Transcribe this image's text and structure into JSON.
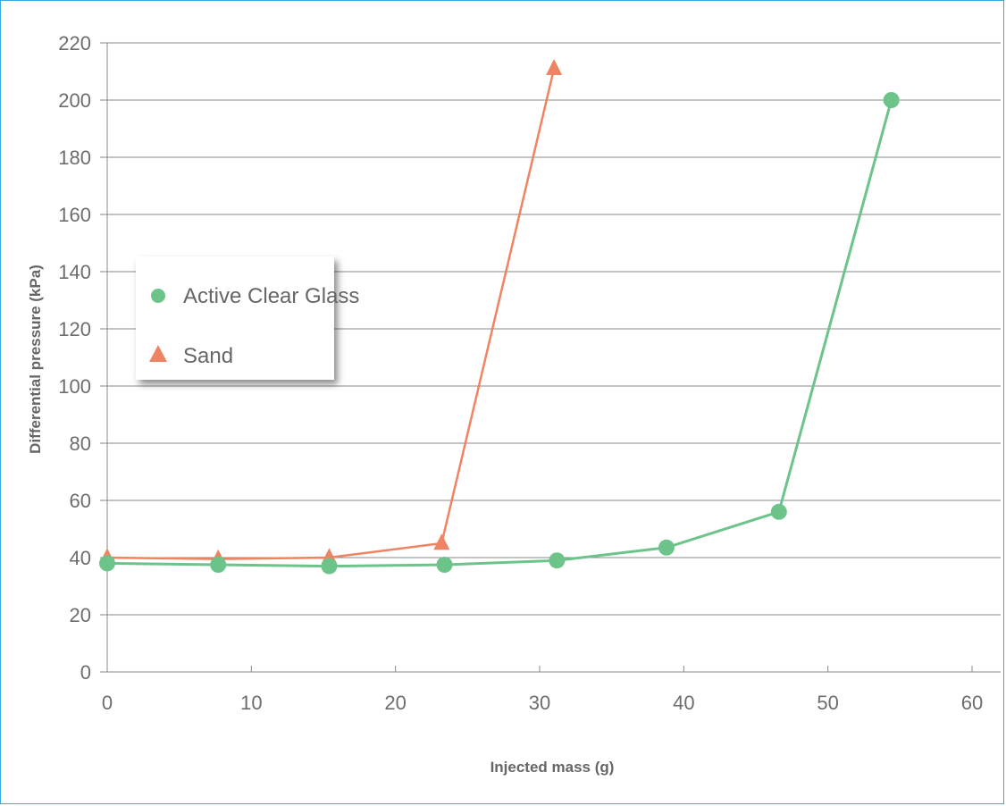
{
  "chart_data": {
    "type": "line",
    "title": "",
    "xlabel": "Injected mass (g)",
    "ylabel": "Differential pressure (kPa)",
    "xlim": [
      0,
      60
    ],
    "ylim": [
      0,
      220
    ],
    "xticks": [
      0,
      10,
      20,
      30,
      40,
      50,
      60
    ],
    "yticks": [
      0,
      20,
      40,
      60,
      80,
      100,
      120,
      140,
      160,
      180,
      200,
      220
    ],
    "grid": "horizontal",
    "legend_position": "left",
    "series": [
      {
        "name": "Active Clear Glass",
        "marker": "circle",
        "color": "#6cc48a",
        "x": [
          0,
          7.7,
          15.4,
          23.4,
          31.2,
          38.8,
          46.6,
          54.4
        ],
        "y": [
          38,
          37.5,
          37,
          37.5,
          39,
          43.5,
          56,
          200
        ]
      },
      {
        "name": "Sand",
        "marker": "triangle",
        "color": "#ee8463",
        "x": [
          0,
          7.7,
          15.4,
          23.2,
          31.0
        ],
        "y": [
          40,
          39.5,
          40,
          45,
          211
        ]
      }
    ]
  }
}
